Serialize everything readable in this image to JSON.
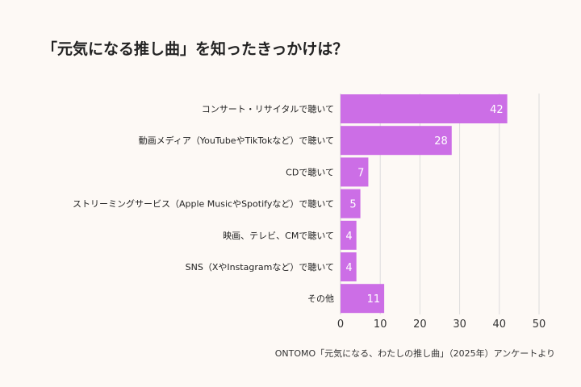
{
  "title": "「元気になる推し曲」を知ったきっかけは？",
  "source": "ONTOMO「元気になる、わたしの推し曲」（2025年）アンケートより",
  "colors": {
    "bar": "#cc6ee6",
    "grid": "#dcdcdc",
    "label": "#222222",
    "value_label": "#ffffff"
  },
  "chart_data": {
    "type": "bar",
    "orientation": "horizontal",
    "categories": [
      "コンサート・リサイタルで聴いて",
      "動画メディア（YouTubeやTikTokなど）で聴いて",
      "CDで聴いて",
      "ストリーミングサービス（Apple MusicやSpotifyなど）で聴いて",
      "映画、テレビ、CMで聴いて",
      "SNS（XやInstagramなど）で聴いて",
      "その他"
    ],
    "values": [
      42,
      28,
      7,
      5,
      4,
      4,
      11
    ],
    "xlim": [
      0,
      50
    ],
    "xticks": [
      0,
      10,
      20,
      30,
      40,
      50
    ],
    "grid": true
  }
}
